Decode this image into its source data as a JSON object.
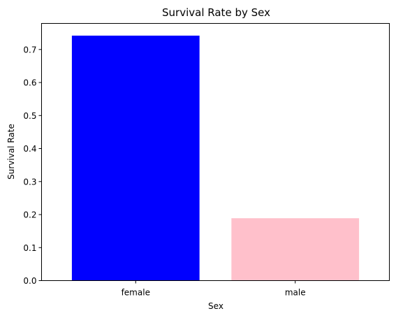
{
  "chart_data": {
    "type": "bar",
    "title": "Survival Rate by Sex",
    "xlabel": "Sex",
    "ylabel": "Survival Rate",
    "categories": [
      "female",
      "male"
    ],
    "values": [
      0.742,
      0.189
    ],
    "bar_colors": [
      "#0000ff",
      "#ffc0cb"
    ],
    "ylim": [
      0,
      0.779
    ],
    "yticks": [
      0.0,
      0.1,
      0.2,
      0.3,
      0.4,
      0.5,
      0.6,
      0.7
    ],
    "ytick_labels": [
      "0.0",
      "0.1",
      "0.2",
      "0.3",
      "0.4",
      "0.5",
      "0.6",
      "0.7"
    ],
    "grid": false,
    "legend": "none"
  }
}
